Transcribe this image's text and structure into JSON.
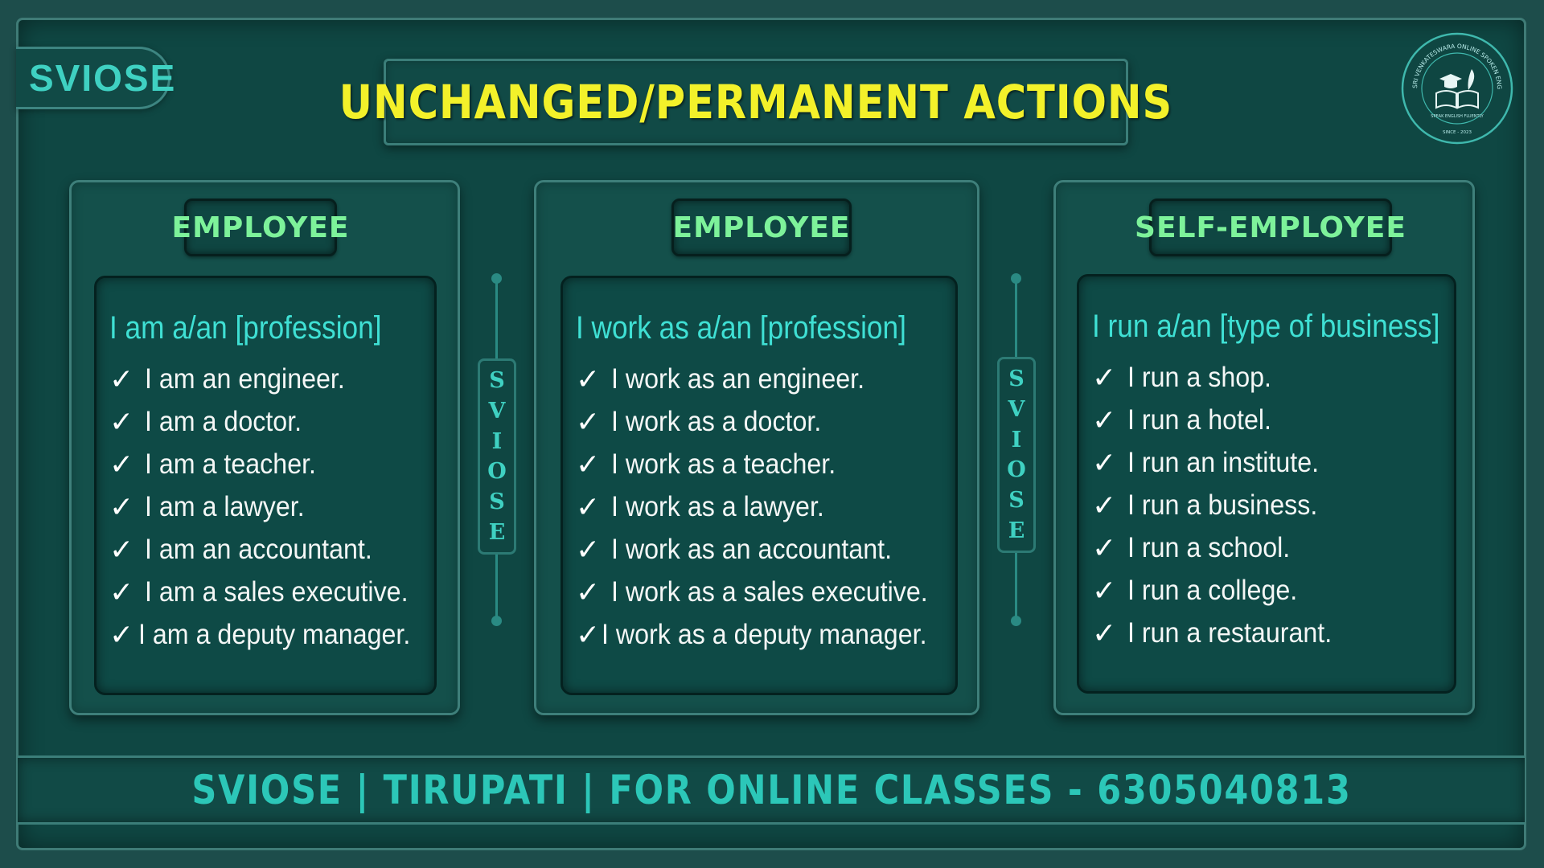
{
  "brand": "SVIOSE",
  "title": "UNCHANGED/PERMANENT ACTIONS",
  "logo": {
    "ring_text": "SRI VENKATESWARA ONLINE SPOKEN ENGLISH SCHOOL",
    "tagline": "SPEAK ENGLISH FLUENTLY",
    "since": "SINCE - 2023",
    "icon": "book-graduation-cap-quill-icon"
  },
  "columns": [
    {
      "header": "EMPLOYEE",
      "formula": "I am a/an [profession]",
      "examples": [
        "I am an engineer.",
        "I am a doctor.",
        "I am a teacher.",
        "I am a lawyer.",
        "I am an accountant.",
        "I am a sales executive.",
        "I am a deputy manager."
      ]
    },
    {
      "header": "EMPLOYEE",
      "formula": "I work as a/an [profession]",
      "examples": [
        "I work as an engineer.",
        "I work as a doctor.",
        "I work as a teacher.",
        "I work as a lawyer.",
        "I work as an accountant.",
        "I work as a sales executive.",
        "I work as a deputy manager."
      ]
    },
    {
      "header": "SELF-EMPLOYEE",
      "formula": "I run a/an [type of business]",
      "examples": [
        "I run a shop.",
        "I run a hotel.",
        "I run an institute.",
        "I run a business.",
        "I run a school.",
        "I run a college.",
        "I run a restaurant."
      ]
    }
  ],
  "divider_letters": [
    "S",
    "V",
    "I",
    "O",
    "S",
    "E"
  ],
  "check_mark": "✓",
  "footer": "SVIOSE | TIRUPATI | FOR ONLINE CLASSES - 6305040813",
  "colors": {
    "background": "#0f4743",
    "title": "#f3f12a",
    "header": "#7df29a",
    "formula": "#3fe0d4",
    "brand": "#3fd1c2"
  }
}
